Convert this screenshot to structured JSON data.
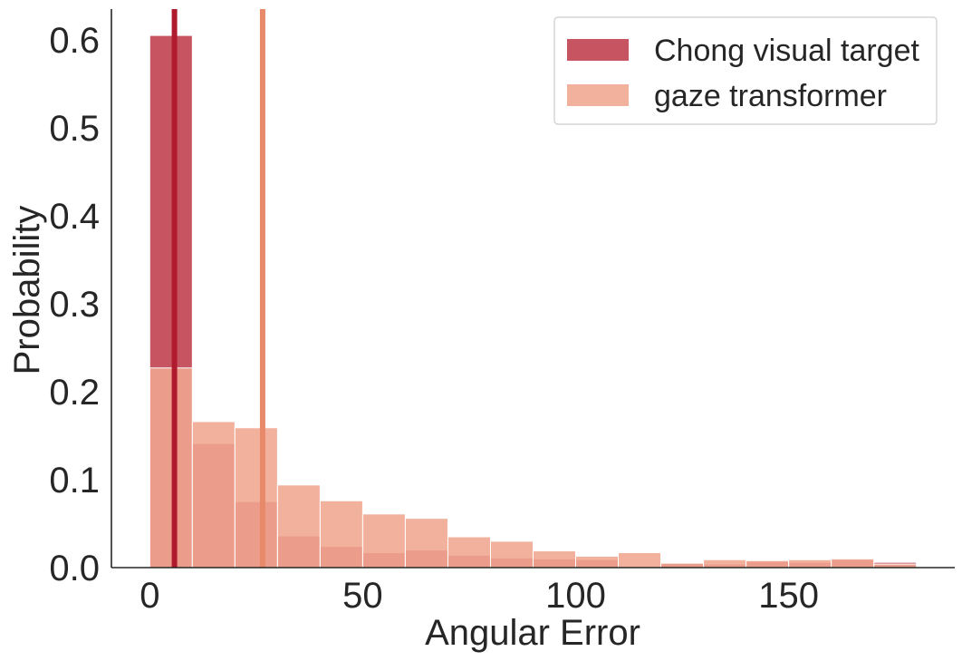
{
  "chart_data": {
    "type": "bar",
    "xlabel": "Angular Error",
    "ylabel": "Probability",
    "xlim": [
      -9,
      189
    ],
    "ylim": [
      0,
      0.635
    ],
    "x_ticks": [
      0,
      50,
      100,
      150
    ],
    "y_ticks": [
      0.0,
      0.1,
      0.2,
      0.3,
      0.4,
      0.5,
      0.6
    ],
    "bin_edges": [
      0,
      10,
      20,
      30,
      40,
      50,
      60,
      70,
      80,
      90,
      100,
      110,
      120,
      130,
      140,
      150,
      160,
      170,
      180
    ],
    "series": [
      {
        "name": "Chong visual target",
        "color": "#c44e5c",
        "values": [
          0.605,
          0.141,
          0.075,
          0.036,
          0.024,
          0.017,
          0.02,
          0.014,
          0.011,
          0.01,
          0.009,
          0.0,
          0.005,
          0.004,
          0.007,
          0.006,
          0.009,
          0.006
        ],
        "mean_line": {
          "x": 5.8,
          "color": "#b01a2e"
        }
      },
      {
        "name": "gaze transformer",
        "color": "#f0a68f",
        "values": [
          0.227,
          0.166,
          0.159,
          0.094,
          0.076,
          0.061,
          0.056,
          0.035,
          0.03,
          0.019,
          0.013,
          0.017,
          0.005,
          0.009,
          0.008,
          0.009,
          0.01,
          0.004
        ],
        "mean_line": {
          "x": 26.5,
          "color": "#e8896a"
        }
      }
    ],
    "legend_position": "top-right",
    "grid": false
  }
}
